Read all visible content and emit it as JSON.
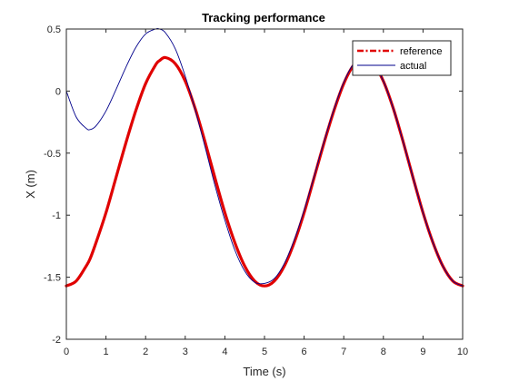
{
  "chart_data": {
    "type": "line",
    "title": "Tracking performance",
    "xlabel": "Time (s)",
    "ylabel": "X (m)",
    "xlim": [
      0,
      10
    ],
    "ylim": [
      -2,
      0.5
    ],
    "xticks": [
      0,
      1,
      2,
      3,
      4,
      5,
      6,
      7,
      8,
      9,
      10
    ],
    "xtick_labels": [
      "0",
      "1",
      "2",
      "3",
      "4",
      "5",
      "6",
      "7",
      "8",
      "9",
      "10"
    ],
    "yticks": [
      -2,
      -1.5,
      -1,
      -0.5,
      0,
      0.5
    ],
    "ytick_labels": [
      "-2",
      "-1.5",
      "-1",
      "-0.5",
      "0",
      "0.5"
    ],
    "grid": false,
    "legend_position": "top-right",
    "x": [
      0,
      0.25,
      0.5,
      0.6,
      0.75,
      1,
      1.25,
      1.5,
      1.75,
      2,
      2.25,
      2.35,
      2.5,
      2.75,
      3,
      3.25,
      3.5,
      3.75,
      4,
      4.25,
      4.5,
      4.75,
      5,
      5.25,
      5.5,
      5.75,
      6,
      6.25,
      6.5,
      6.75,
      7,
      7.25,
      7.5,
      7.75,
      8,
      8.25,
      8.5,
      8.75,
      9,
      9.25,
      9.5,
      9.75,
      10
    ],
    "series": [
      {
        "name": "reference",
        "color": "#e00000",
        "style": "dash-dot",
        "values": [
          -1.57,
          -1.53,
          -1.41,
          -1.35,
          -1.22,
          -0.98,
          -0.7,
          -0.42,
          -0.16,
          0.06,
          0.21,
          0.245,
          0.27,
          0.22,
          0.08,
          -0.14,
          -0.41,
          -0.7,
          -0.98,
          -1.22,
          -1.41,
          -1.53,
          -1.57,
          -1.53,
          -1.41,
          -1.22,
          -0.98,
          -0.7,
          -0.42,
          -0.16,
          0.06,
          0.21,
          0.27,
          0.22,
          0.08,
          -0.14,
          -0.41,
          -0.7,
          -0.98,
          -1.22,
          -1.41,
          -1.53,
          -1.57
        ]
      },
      {
        "name": "actual",
        "color": "#00008b",
        "style": "solid",
        "values": [
          0.0,
          -0.21,
          -0.3,
          -0.31,
          -0.28,
          -0.16,
          0.01,
          0.19,
          0.35,
          0.46,
          0.5,
          0.5,
          0.47,
          0.34,
          0.12,
          -0.15,
          -0.45,
          -0.76,
          -1.04,
          -1.28,
          -1.45,
          -1.54,
          -1.55,
          -1.51,
          -1.39,
          -1.2,
          -0.96,
          -0.69,
          -0.41,
          -0.15,
          0.07,
          0.22,
          0.27,
          0.22,
          0.08,
          -0.14,
          -0.41,
          -0.7,
          -0.98,
          -1.22,
          -1.41,
          -1.53,
          -1.57
        ]
      }
    ]
  }
}
